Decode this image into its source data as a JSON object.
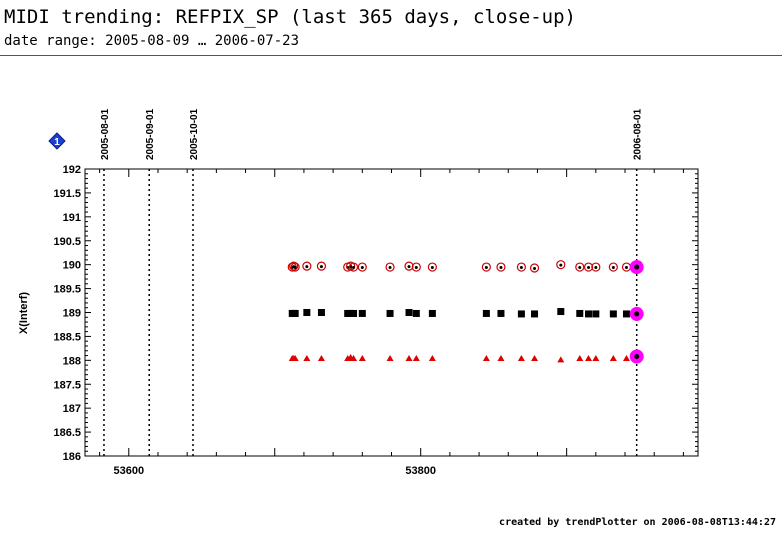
{
  "header": {
    "title": "MIDI trending: REFPIX_SP (last 365 days, close-up)",
    "subtitle": "date range: 2005-08-09 … 2006-07-23"
  },
  "footer": {
    "text": "created by trendPlotter on 2006-08-08T13:44:27"
  },
  "badge": {
    "label": "1",
    "color": "#1a3fd6"
  },
  "chart_data": {
    "type": "scatter",
    "title": "",
    "xlabel": "",
    "ylabel": "X(Interf)",
    "xlim": [
      53570,
      53990
    ],
    "ylim": [
      186,
      192
    ],
    "x_ticks": [
      53600,
      53800
    ],
    "y_ticks": [
      "186",
      "186.5",
      "187",
      "187.5",
      "188",
      "188.5",
      "189",
      "189.5",
      "190",
      "190.5",
      "191",
      "191.5",
      "192"
    ],
    "grid": false,
    "date_markers": [
      {
        "label": "2005-08-01",
        "mjd": 53583
      },
      {
        "label": "2005-09-01",
        "mjd": 53614
      },
      {
        "label": "2005-10-01",
        "mjd": 53644
      },
      {
        "label": "2006-08-01",
        "mjd": 53948
      }
    ],
    "series": [
      {
        "marker": "open-circle-red",
        "color": "#cc0000",
        "x": [
          53712,
          53713,
          53714,
          53722,
          53732,
          53750,
          53752,
          53754,
          53760,
          53779,
          53792,
          53797,
          53808,
          53845,
          53855,
          53869,
          53878,
          53896,
          53909,
          53915,
          53920,
          53932,
          53941
        ],
        "y": [
          189.95,
          189.97,
          189.95,
          189.97,
          189.97,
          189.95,
          189.97,
          189.95,
          189.95,
          189.95,
          189.97,
          189.95,
          189.95,
          189.95,
          189.95,
          189.95,
          189.93,
          190.0,
          189.95,
          189.95,
          189.95,
          189.95,
          189.95
        ]
      },
      {
        "marker": "filled-square-black",
        "color": "#000000",
        "x": [
          53712,
          53713,
          53714,
          53722,
          53732,
          53750,
          53752,
          53754,
          53760,
          53779,
          53792,
          53797,
          53808,
          53845,
          53855,
          53869,
          53878,
          53896,
          53909,
          53915,
          53920,
          53932,
          53941
        ],
        "y": [
          188.98,
          188.98,
          188.98,
          189.0,
          189.0,
          188.98,
          188.98,
          188.98,
          188.98,
          188.98,
          189.0,
          188.98,
          188.98,
          188.98,
          188.98,
          188.97,
          188.97,
          189.02,
          188.98,
          188.97,
          188.97,
          188.97,
          188.97
        ]
      },
      {
        "marker": "filled-triangle-red",
        "color": "#e00000",
        "x": [
          53712,
          53713,
          53714,
          53722,
          53732,
          53750,
          53752,
          53754,
          53760,
          53779,
          53792,
          53797,
          53808,
          53845,
          53855,
          53869,
          53878,
          53896,
          53909,
          53915,
          53920,
          53932,
          53941
        ],
        "y": [
          188.05,
          188.05,
          188.05,
          188.05,
          188.05,
          188.05,
          188.07,
          188.05,
          188.05,
          188.05,
          188.05,
          188.05,
          188.05,
          188.05,
          188.05,
          188.05,
          188.05,
          188.02,
          188.05,
          188.05,
          188.05,
          188.05,
          188.05
        ]
      },
      {
        "marker": "latest-magenta",
        "color": "#ff00ff",
        "x": [
          53948,
          53948,
          53948
        ],
        "y": [
          189.95,
          188.97,
          188.08
        ]
      }
    ]
  }
}
